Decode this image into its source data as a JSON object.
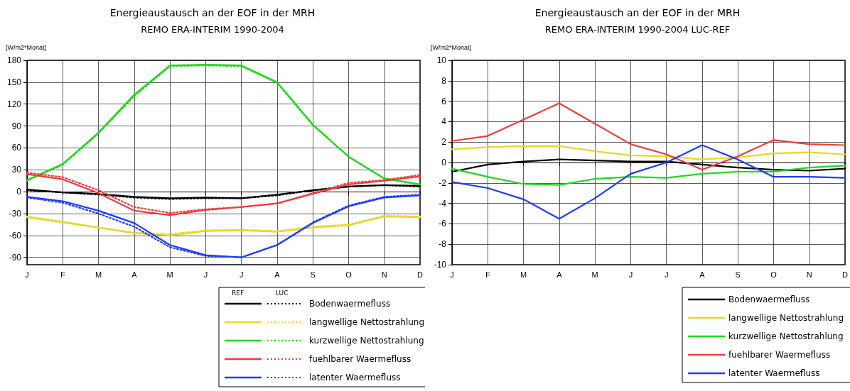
{
  "chart_data": [
    {
      "type": "line",
      "title": "Energieaustausch an der EOF in der MRH",
      "subtitle": "REMO ERA-INTERIM 1990-2004",
      "ylabel": "[W/m2*Monat]",
      "categories": [
        "J",
        "F",
        "M",
        "A",
        "M",
        "J",
        "J",
        "A",
        "S",
        "O",
        "N",
        "D"
      ],
      "ylim": [
        -100,
        180
      ],
      "yticks": [
        -90,
        -60,
        -30,
        0,
        30,
        60,
        90,
        120,
        150,
        180
      ],
      "grid": true,
      "legend": "bottom right",
      "annotations": [
        "REF",
        "LUC"
      ],
      "series": [
        {
          "name": "Bodenwaermefluss",
          "color": "#000000",
          "line_style": "solid",
          "values": [
            3,
            -1,
            -3,
            -7,
            -9,
            -8,
            -9,
            -4,
            2,
            7,
            9,
            8
          ]
        },
        {
          "color": "#000000",
          "line_style": "dotted",
          "values": [
            2,
            -1,
            -4,
            -8,
            -10,
            -9,
            -9,
            -5,
            2,
            7,
            9,
            7
          ]
        },
        {
          "name": "langwellige Nettostrahlung",
          "color": "#e6d82a",
          "line_style": "solid",
          "values": [
            -35,
            -42,
            -49,
            -57,
            -60,
            -54,
            -53,
            -55,
            -49,
            -46,
            -34,
            -35
          ]
        },
        {
          "color": "#e6d82a",
          "line_style": "dotted",
          "values": [
            -34,
            -41,
            -49,
            -56,
            -58,
            -53,
            -52,
            -54,
            -48,
            -45,
            -33,
            -34
          ]
        },
        {
          "name": "kurzwellige Nettostrahlung",
          "color": "#1ed91e",
          "line_style": "solid",
          "values": [
            16,
            38,
            81,
            133,
            173,
            174,
            173,
            150,
            92,
            48,
            18,
            10
          ]
        },
        {
          "color": "#1ed91e",
          "line_style": "dotted",
          "values": [
            15,
            37,
            80,
            131,
            172,
            173,
            172,
            149,
            91,
            48,
            18,
            10
          ]
        },
        {
          "name": "fuehlbarer Waermefluss",
          "color": "#f03c3c",
          "line_style": "solid",
          "values": [
            24,
            17,
            -2,
            -26,
            -32,
            -25,
            -21,
            -16,
            -3,
            10,
            15,
            21
          ]
        },
        {
          "color": "#f03c3c",
          "line_style": "dotted",
          "values": [
            26,
            20,
            2,
            -21,
            -29,
            -24,
            -21,
            -16,
            -2,
            12,
            16,
            23
          ]
        },
        {
          "name": "latenter Waermefluss",
          "color": "#1e3cff",
          "line_style": "solid",
          "values": [
            -7,
            -13,
            -26,
            -43,
            -73,
            -87,
            -90,
            -73,
            -43,
            -20,
            -8,
            -5
          ]
        },
        {
          "color": "#1e3cff",
          "line_style": "dotted",
          "values": [
            -8,
            -15,
            -30,
            -48,
            -76,
            -88,
            -90,
            -73,
            -42,
            -19,
            -7,
            -4
          ]
        }
      ]
    },
    {
      "type": "line",
      "title": "Energieaustausch an der EOF in der MRH",
      "subtitle": "REMO ERA-INTERIM 1990-2004 LUC-REF",
      "ylabel": "[W/m2*Monat]",
      "categories": [
        "J",
        "F",
        "M",
        "A",
        "M",
        "J",
        "J",
        "A",
        "S",
        "O",
        "N",
        "D"
      ],
      "ylim": [
        -10,
        10
      ],
      "yticks": [
        -10,
        -8,
        -6,
        -4,
        -2,
        0,
        2,
        4,
        6,
        8,
        10
      ],
      "grid": true,
      "legend": "bottom right",
      "line_style": "solid",
      "series": [
        {
          "name": "Bodenwaermefluss",
          "color": "#000000",
          "values": [
            -0.9,
            -0.2,
            0.1,
            0.3,
            0.2,
            0.1,
            0.1,
            -0.2,
            -0.5,
            -0.7,
            -0.8,
            -0.6
          ]
        },
        {
          "name": "langwellige Nettostrahlung",
          "color": "#e6d82a",
          "values": [
            1.3,
            1.5,
            1.6,
            1.6,
            1.1,
            0.7,
            0.6,
            0.3,
            0.5,
            0.9,
            1.0,
            0.8
          ]
        },
        {
          "name": "kurzwellige Nettostrahlung",
          "color": "#1ed91e",
          "values": [
            -0.6,
            -1.4,
            -2.1,
            -2.2,
            -1.6,
            -1.4,
            -1.5,
            -1.1,
            -0.9,
            -0.9,
            -0.5,
            -0.3
          ]
        },
        {
          "name": "fuehlbarer Waermefluss",
          "color": "#f03c3c",
          "values": [
            2.1,
            2.6,
            4.2,
            5.8,
            3.8,
            1.8,
            0.8,
            -0.7,
            0.6,
            2.2,
            1.8,
            1.7
          ]
        },
        {
          "name": "latenter Waermefluss",
          "color": "#1e3cff",
          "values": [
            -1.9,
            -2.5,
            -3.6,
            -5.5,
            -3.5,
            -1.1,
            0.0,
            1.7,
            0.3,
            -1.4,
            -1.4,
            -1.5
          ]
        }
      ]
    }
  ]
}
